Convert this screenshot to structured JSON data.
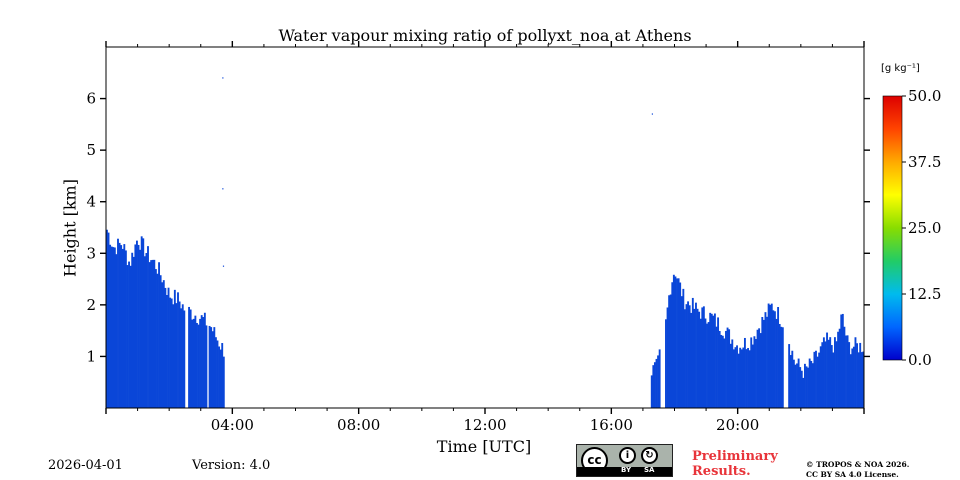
{
  "chart_data": {
    "type": "heatmap",
    "title": "Water vapour mixing ratio of pollyxt_noa at Athens",
    "xlabel": "Time [UTC]",
    "ylabel": "Height [km]",
    "xlim_hours": [
      0,
      24
    ],
    "ylim_km": [
      0,
      7
    ],
    "x_ticks": [
      {
        "hour": 4,
        "label": "04:00"
      },
      {
        "hour": 8,
        "label": "08:00"
      },
      {
        "hour": 12,
        "label": "12:00"
      },
      {
        "hour": 16,
        "label": "16:00"
      },
      {
        "hour": 20,
        "label": "20:00"
      }
    ],
    "y_ticks": [
      {
        "km": 1,
        "label": "1"
      },
      {
        "km": 2,
        "label": "2"
      },
      {
        "km": 3,
        "label": "3"
      },
      {
        "km": 4,
        "label": "4"
      },
      {
        "km": 5,
        "label": "5"
      },
      {
        "km": 6,
        "label": "6"
      }
    ],
    "colorbar": {
      "units": "[g kg⁻¹]",
      "min": 0.0,
      "max": 50.0,
      "ticks": [
        {
          "value": 0,
          "label": "0.0"
        },
        {
          "value": 12.5,
          "label": "12.5"
        },
        {
          "value": 25,
          "label": "25.0"
        },
        {
          "value": 37.5,
          "label": "37.5"
        },
        {
          "value": 50,
          "label": "50.0"
        }
      ],
      "colormap": [
        "#0000cc",
        "#0066ff",
        "#00bbee",
        "#22cc66",
        "#88dd00",
        "#ffff00",
        "#ffaa00",
        "#ff4400",
        "#dd0000"
      ]
    },
    "fill_color": "#0a46d8",
    "profile_top_km": [
      {
        "hour": 0.0,
        "top_km": 3.5
      },
      {
        "hour": 0.25,
        "top_km": 3.1
      },
      {
        "hour": 0.5,
        "top_km": 3.2
      },
      {
        "hour": 0.75,
        "top_km": 2.8
      },
      {
        "hour": 1.0,
        "top_km": 3.3
      },
      {
        "hour": 1.3,
        "top_km": 3.0
      },
      {
        "hour": 1.6,
        "top_km": 2.75
      },
      {
        "hour": 1.8,
        "top_km": 2.5
      },
      {
        "hour": 2.0,
        "top_km": 2.2
      },
      {
        "hour": 2.3,
        "top_km": 2.1
      },
      {
        "hour": 2.5,
        "top_km": 1.9
      },
      {
        "hour": 2.7,
        "top_km": 1.85
      },
      {
        "hour": 3.0,
        "top_km": 1.75
      },
      {
        "hour": 3.3,
        "top_km": 1.6
      },
      {
        "hour": 3.55,
        "top_km": 1.3
      },
      {
        "hour": 3.75,
        "top_km": 1.1
      },
      {
        "hour": 17.25,
        "top_km": 0.7
      },
      {
        "hour": 17.45,
        "top_km": 0.8
      },
      {
        "hour": 17.7,
        "top_km": 1.5
      },
      {
        "hour": 17.85,
        "top_km": 2.3
      },
      {
        "hour": 18.0,
        "top_km": 2.7
      },
      {
        "hour": 18.3,
        "top_km": 2.1
      },
      {
        "hour": 18.7,
        "top_km": 1.9
      },
      {
        "hour": 19.2,
        "top_km": 1.75
      },
      {
        "hour": 19.6,
        "top_km": 1.5
      },
      {
        "hour": 20.0,
        "top_km": 1.2
      },
      {
        "hour": 20.4,
        "top_km": 1.3
      },
      {
        "hour": 20.8,
        "top_km": 1.7
      },
      {
        "hour": 21.1,
        "top_km": 2.0
      },
      {
        "hour": 21.5,
        "top_km": 1.6
      },
      {
        "hour": 21.8,
        "top_km": 0.9
      },
      {
        "hour": 22.1,
        "top_km": 0.7
      },
      {
        "hour": 22.4,
        "top_km": 0.9
      },
      {
        "hour": 22.8,
        "top_km": 1.3
      },
      {
        "hour": 23.1,
        "top_km": 1.2
      },
      {
        "hour": 23.3,
        "top_km": 1.8
      },
      {
        "hour": 23.5,
        "top_km": 1.2
      },
      {
        "hour": 24.0,
        "top_km": 1.2
      }
    ],
    "data_gaps_hours": [
      [
        2.5,
        2.6
      ],
      [
        3.2,
        3.25
      ],
      [
        3.75,
        17.25
      ],
      [
        17.55,
        17.7
      ],
      [
        21.45,
        21.6
      ]
    ],
    "isolated_points": [
      {
        "hour": 3.7,
        "km": 6.4
      },
      {
        "hour": 3.7,
        "km": 4.25
      },
      {
        "hour": 3.72,
        "km": 2.75
      },
      {
        "hour": 17.3,
        "km": 5.7
      }
    ]
  },
  "footer": {
    "date": "2026-04-01",
    "version": "Version: 4.0",
    "preliminary": "Preliminary Results.",
    "copyright_line1": "© TROPOS & NOA 2026.",
    "copyright_line2": "CC BY SA 4.0 License.",
    "license_badge": {
      "main": "cc",
      "by": "BY",
      "sa": "SA"
    }
  }
}
